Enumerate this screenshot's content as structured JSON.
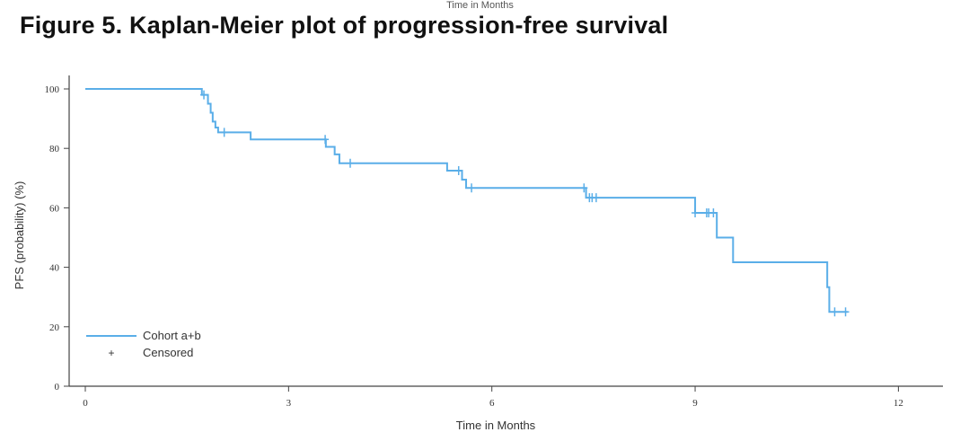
{
  "top_cut_text": "Time in Months",
  "title": "Figure 5. Kaplan-Meier plot of progression-free survival",
  "chart_data": {
    "type": "line",
    "subtype": "kaplan-meier step",
    "title": "Figure 5. Kaplan-Meier plot of progression-free survival",
    "xlabel": "Time in Months",
    "ylabel": "PFS (probability) (%)",
    "xlim": [
      0,
      12.6
    ],
    "ylim": [
      0,
      100
    ],
    "xticks": [
      0,
      3,
      6,
      9,
      12
    ],
    "yticks": [
      0,
      20,
      40,
      60,
      80,
      100
    ],
    "grid": false,
    "legend_position": "bottom-left",
    "color": "#5aaee8",
    "series": [
      {
        "name": "Cohort a+b",
        "steps": [
          [
            0,
            100
          ],
          [
            1.72,
            98
          ],
          [
            1.81,
            95
          ],
          [
            1.85,
            92
          ],
          [
            1.88,
            89
          ],
          [
            1.92,
            87
          ],
          [
            1.96,
            85.4
          ],
          [
            2.44,
            83
          ],
          [
            3.55,
            80.5
          ],
          [
            3.68,
            78
          ],
          [
            3.75,
            75
          ],
          [
            5.34,
            72.5
          ],
          [
            5.56,
            69.5
          ],
          [
            5.62,
            66.7
          ],
          [
            7.39,
            63.4
          ],
          [
            9.0,
            58.3
          ],
          [
            9.32,
            50
          ],
          [
            9.56,
            41.7
          ],
          [
            10.95,
            33.3
          ],
          [
            10.98,
            25
          ],
          [
            11.25,
            25
          ]
        ],
        "censored": [
          [
            1.75,
            98
          ],
          [
            2.05,
            85.4
          ],
          [
            3.54,
            83
          ],
          [
            3.91,
            75
          ],
          [
            5.51,
            72.5
          ],
          [
            5.7,
            66.7
          ],
          [
            7.36,
            66.7
          ],
          [
            7.44,
            63.4
          ],
          [
            7.48,
            63.4
          ],
          [
            7.54,
            63.4
          ],
          [
            9.0,
            58.3
          ],
          [
            9.17,
            58.3
          ],
          [
            9.2,
            58.3
          ],
          [
            9.27,
            58.3
          ],
          [
            11.06,
            25
          ],
          [
            11.22,
            25
          ]
        ]
      }
    ],
    "legend": [
      "Cohort a+b",
      "Censored"
    ]
  }
}
